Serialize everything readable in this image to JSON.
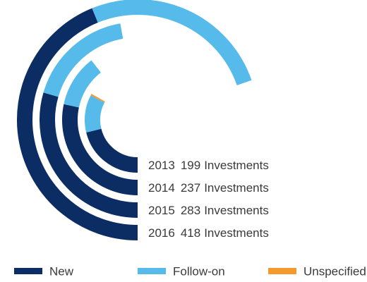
{
  "chart_data": {
    "type": "radial-bar",
    "categories": [
      "2013",
      "2014",
      "2015",
      "2016"
    ],
    "totals": [
      199,
      237,
      283,
      418
    ],
    "unit": "Investments",
    "series": [
      {
        "name": "New",
        "color": "#0b2d63",
        "values": [
          127,
          170,
          177,
          263
        ]
      },
      {
        "name": "Follow-on",
        "color": "#56bbea",
        "values": [
          69,
          67,
          106,
          155
        ]
      },
      {
        "name": "Unspecified",
        "color": "#f39a2e",
        "values": [
          3,
          0,
          0,
          0
        ]
      }
    ],
    "xlim": [
      0,
      600
    ]
  }
}
